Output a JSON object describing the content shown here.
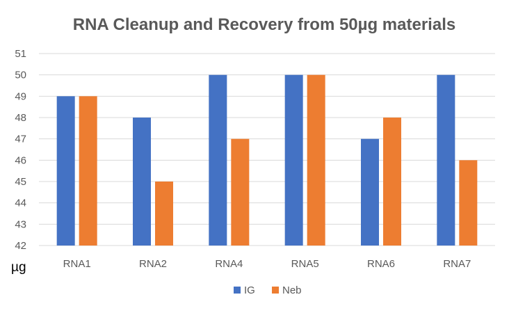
{
  "chart_data": {
    "type": "bar",
    "title": "RNA Cleanup and Recovery from 50µg materials",
    "ylabel": "µg",
    "xlabel": "",
    "categories": [
      "RNA1",
      "RNA2",
      "RNA4",
      "RNA5",
      "RNA6",
      "RNA7"
    ],
    "series": [
      {
        "name": "IG",
        "color": "#4472C4",
        "values": [
          49,
          48,
          50,
          50,
          47,
          50
        ]
      },
      {
        "name": "Neb",
        "color": "#ED7D31",
        "values": [
          49,
          45,
          47,
          50,
          48,
          46
        ]
      }
    ],
    "ylim": [
      42,
      51
    ],
    "yticks": [
      42,
      43,
      44,
      45,
      46,
      47,
      48,
      49,
      50,
      51
    ],
    "grid": true,
    "legend": "bottom"
  }
}
